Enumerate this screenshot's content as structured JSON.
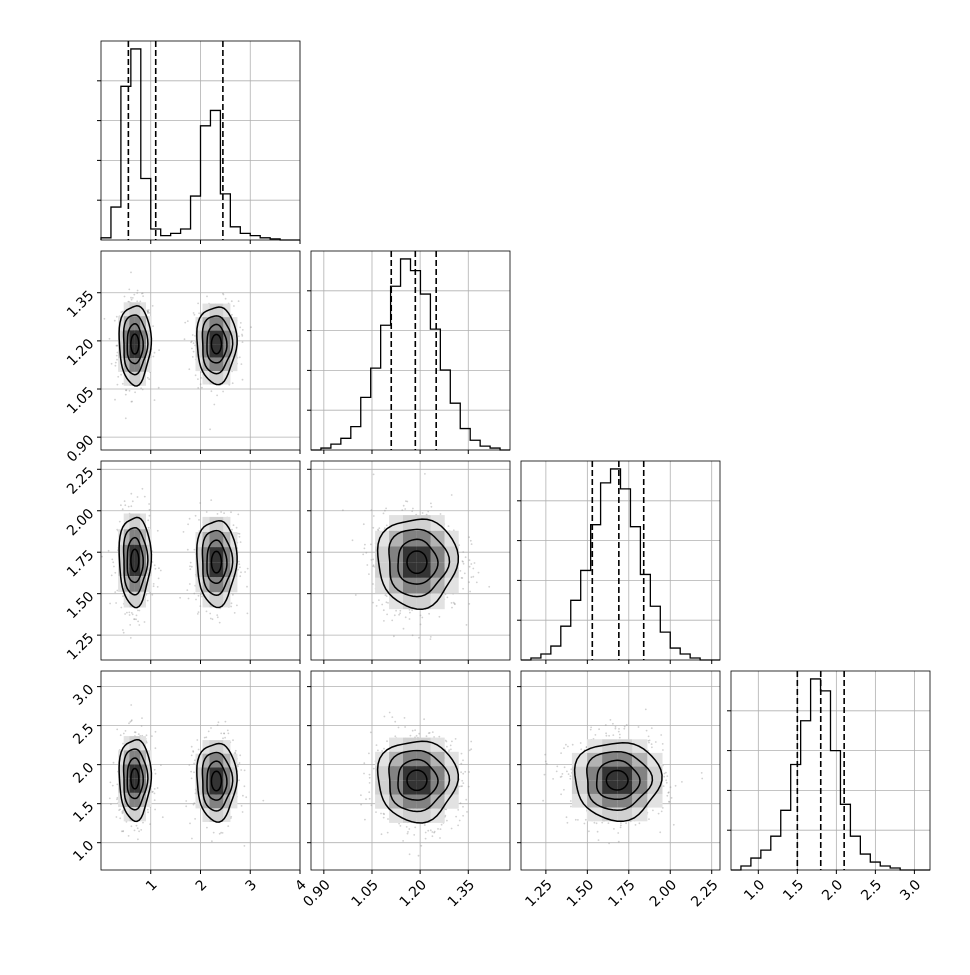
{
  "chart_data": {
    "type": "corner",
    "parameters": 4,
    "colors": {
      "ink": "#000000",
      "grid": "#b0b0b0",
      "scatter": "#9a9a9a",
      "background": "#ffffff"
    },
    "grid": true,
    "axes": [
      {
        "range": [
          0.0,
          4.0
        ],
        "ticks": [
          1,
          2,
          3,
          4
        ],
        "tick_labels": [
          "1",
          "2",
          "3",
          "4"
        ]
      },
      {
        "range": [
          0.86,
          1.48
        ],
        "ticks": [
          0.9,
          1.05,
          1.2,
          1.35
        ],
        "tick_labels": [
          "0.90",
          "1.05",
          "1.20",
          "1.35"
        ]
      },
      {
        "range": [
          1.1,
          2.3
        ],
        "ticks": [
          1.25,
          1.5,
          1.75,
          2.0,
          2.25
        ],
        "tick_labels": [
          "1.25",
          "1.50",
          "1.75",
          "2.00",
          "2.25"
        ]
      },
      {
        "range": [
          0.65,
          3.2
        ],
        "ticks": [
          1.0,
          1.5,
          2.0,
          2.5,
          3.0
        ],
        "tick_labels": [
          "1.0",
          "1.5",
          "2.0",
          "2.5",
          "3.0"
        ]
      }
    ],
    "histograms": [
      {
        "param": 0,
        "bin_edges": [
          0.0,
          0.2,
          0.4,
          0.6,
          0.8,
          1.0,
          1.2,
          1.4,
          1.6,
          1.8,
          2.0,
          2.2,
          2.4,
          2.6,
          2.8,
          3.0,
          3.2,
          3.4,
          3.6,
          3.8,
          4.0
        ],
        "counts": [
          0.01,
          0.15,
          0.7,
          0.87,
          0.28,
          0.05,
          0.02,
          0.03,
          0.05,
          0.2,
          0.52,
          0.59,
          0.21,
          0.06,
          0.03,
          0.02,
          0.01,
          0.005,
          0.0,
          0.0
        ],
        "quantiles": [
          0.55,
          1.1,
          2.45
        ]
      },
      {
        "param": 1,
        "bin_edges": [
          0.86,
          0.891,
          0.922,
          0.953,
          0.984,
          1.015,
          1.046,
          1.077,
          1.108,
          1.139,
          1.17,
          1.201,
          1.232,
          1.263,
          1.294,
          1.325,
          1.356,
          1.387,
          1.418,
          1.449,
          1.48
        ],
        "counts": [
          0.0,
          0.01,
          0.03,
          0.06,
          0.12,
          0.27,
          0.42,
          0.64,
          0.84,
          0.98,
          0.92,
          0.8,
          0.62,
          0.41,
          0.24,
          0.11,
          0.05,
          0.02,
          0.01,
          0.0
        ],
        "quantiles": [
          1.11,
          1.185,
          1.25
        ]
      },
      {
        "param": 2,
        "bin_edges": [
          1.1,
          1.16,
          1.22,
          1.28,
          1.34,
          1.4,
          1.46,
          1.52,
          1.58,
          1.64,
          1.7,
          1.76,
          1.82,
          1.88,
          1.94,
          2.0,
          2.06,
          2.12,
          2.18,
          2.24,
          2.3
        ],
        "counts": [
          0.0,
          0.01,
          0.03,
          0.07,
          0.17,
          0.3,
          0.45,
          0.68,
          0.89,
          0.96,
          0.86,
          0.67,
          0.43,
          0.27,
          0.14,
          0.06,
          0.03,
          0.01,
          0.0,
          0.0
        ],
        "quantiles": [
          1.53,
          1.69,
          1.84
        ]
      },
      {
        "param": 3,
        "bin_edges": [
          0.65,
          0.7775,
          0.905,
          1.0325,
          1.16,
          1.2875,
          1.415,
          1.5425,
          1.67,
          1.7975,
          1.925,
          2.0525,
          2.18,
          2.3075,
          2.435,
          2.5625,
          2.69,
          2.8175,
          2.945,
          3.0725,
          3.2
        ],
        "counts": [
          0.0,
          0.02,
          0.06,
          0.1,
          0.17,
          0.3,
          0.53,
          0.75,
          0.96,
          0.9,
          0.6,
          0.33,
          0.17,
          0.08,
          0.04,
          0.02,
          0.01,
          0.0,
          0.0,
          0.0
        ],
        "quantiles": [
          1.5,
          1.8,
          2.1
        ]
      }
    ],
    "pair_panels": [
      {
        "row": 1,
        "col": 0,
        "modes": [
          {
            "center": [
              0.68,
              1.19
            ],
            "sigma": [
              0.16,
              0.062
            ]
          },
          {
            "center": [
              2.32,
              1.19
            ],
            "sigma": [
              0.2,
              0.06
            ]
          }
        ]
      },
      {
        "row": 2,
        "col": 0,
        "modes": [
          {
            "center": [
              0.68,
              1.7
            ],
            "sigma": [
              0.16,
              0.135
            ]
          },
          {
            "center": [
              2.32,
              1.69
            ],
            "sigma": [
              0.2,
              0.13
            ]
          }
        ]
      },
      {
        "row": 2,
        "col": 1,
        "modes": [
          {
            "center": [
              1.19,
              1.69
            ],
            "sigma": [
              0.062,
              0.135
            ]
          }
        ]
      },
      {
        "row": 3,
        "col": 0,
        "modes": [
          {
            "center": [
              0.68,
              1.82
            ],
            "sigma": [
              0.16,
              0.26
            ]
          },
          {
            "center": [
              2.32,
              1.79
            ],
            "sigma": [
              0.2,
              0.25
            ]
          }
        ]
      },
      {
        "row": 3,
        "col": 1,
        "modes": [
          {
            "center": [
              1.19,
              1.8
            ],
            "sigma": [
              0.062,
              0.26
            ]
          }
        ]
      },
      {
        "row": 3,
        "col": 2,
        "modes": [
          {
            "center": [
              1.68,
              1.8
            ],
            "sigma": [
              0.13,
              0.25
            ]
          }
        ]
      }
    ],
    "contour_levels_sigma": [
      0.5,
      1.0,
      1.5,
      2.0
    ]
  }
}
